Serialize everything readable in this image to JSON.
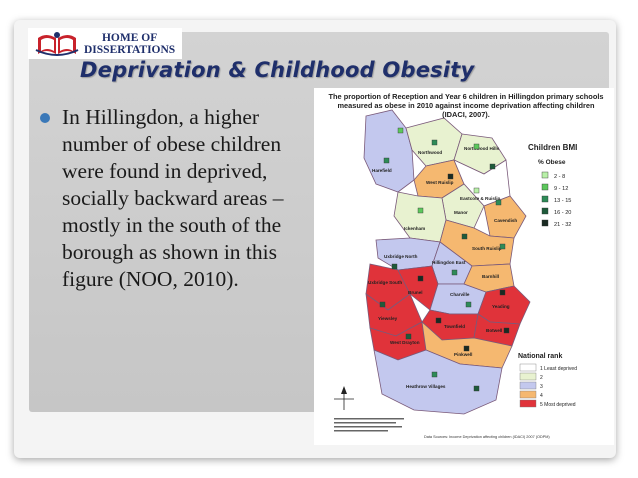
{
  "logo": {
    "line1": "HOME OF",
    "line2": "DISSERTATIONS"
  },
  "slide": {
    "title": "Deprivation & Childhood Obesity",
    "bullet": "In Hillingdon, a higher number of obese children were found in deprived, socially backward areas – mostly in the south of the borough as shown in this figure (NOO, 2010)."
  },
  "figure": {
    "caption": "The proportion of Reception and Year 6 children in Hillingdon primary schools measured as obese in 2010 against income deprivation affecting children (IDACI, 2007).",
    "areas": [
      "Northwood",
      "Harefield",
      "Northwood Hills",
      "West Ruislip",
      "Eastcote & Ruislip",
      "Manor",
      "Cavendish",
      "Ickenham",
      "South Ruislip",
      "Hillingdon East",
      "Uxbridge North",
      "Uxbridge South",
      "Brunel",
      "Charville",
      "Barnhill",
      "Yeading",
      "Botwell",
      "Townfield",
      "Yiewsley",
      "West Drayton",
      "Pinkwell",
      "Heathrow Villages"
    ],
    "legend_bmi": {
      "title": "Children BMI",
      "subtitle": "% Obese",
      "items": [
        {
          "label": "2 - 8",
          "color": "#b8f0a8"
        },
        {
          "label": "9 - 12",
          "color": "#5cc85c"
        },
        {
          "label": "13 - 15",
          "color": "#2e8b57"
        },
        {
          "label": "16 - 20",
          "color": "#1e5a3a"
        },
        {
          "label": "21 - 32",
          "color": "#1a2a22"
        }
      ]
    },
    "legend_rank": {
      "title": "National rank",
      "items": [
        {
          "label": "1 Least deprived",
          "color": "#ffffff"
        },
        {
          "label": "2",
          "color": "#e8f2d0"
        },
        {
          "label": "3",
          "color": "#c3c8ee"
        },
        {
          "label": "4",
          "color": "#f5b870"
        },
        {
          "label": "5 Most deprived",
          "color": "#e0333a"
        }
      ]
    },
    "source": "Data Sources: Income Deprivation affecting children (IDACI) 2007 (ODPM)"
  }
}
